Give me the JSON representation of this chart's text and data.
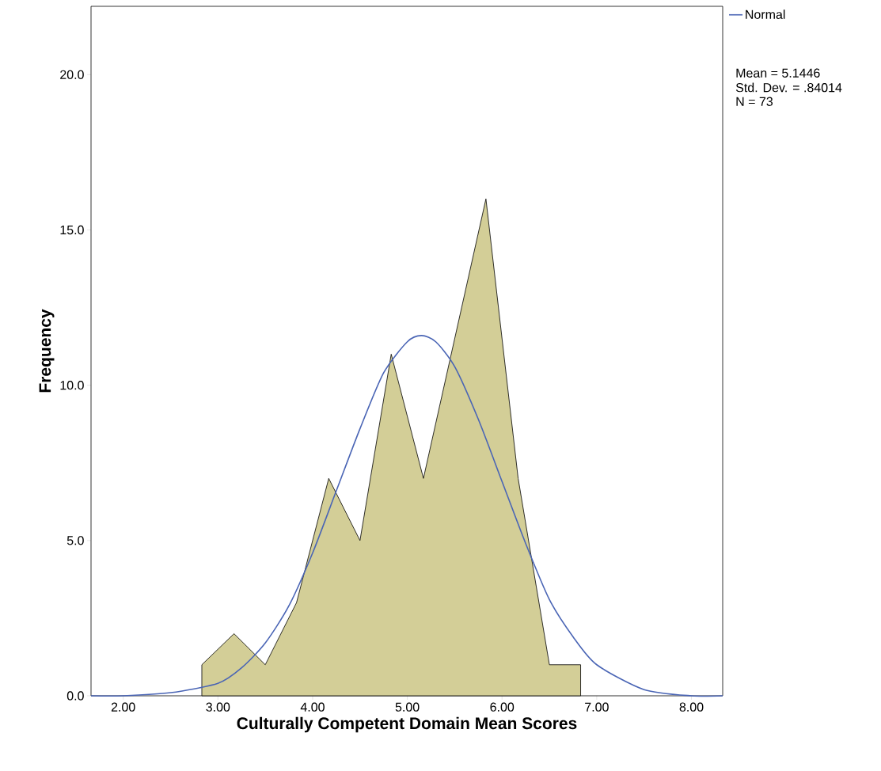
{
  "chart_data": {
    "type": "area",
    "xlabel": "Culturally Competent Domain Mean Scores",
    "ylabel": "Frequency",
    "xlim": [
      1.66,
      8.33
    ],
    "ylim": [
      0,
      22.2
    ],
    "xticks": [
      {
        "value": 2,
        "label": "2.00"
      },
      {
        "value": 3,
        "label": "3.00"
      },
      {
        "value": 4,
        "label": "4.00"
      },
      {
        "value": 5,
        "label": "5.00"
      },
      {
        "value": 6,
        "label": "6.00"
      },
      {
        "value": 7,
        "label": "7.00"
      },
      {
        "value": 8,
        "label": "8.00"
      }
    ],
    "yticks": [
      {
        "value": 0,
        "label": "0.0"
      },
      {
        "value": 5,
        "label": "5.0"
      },
      {
        "value": 10,
        "label": "10.0"
      },
      {
        "value": 15,
        "label": "15.0"
      },
      {
        "value": 20,
        "label": "20.0"
      }
    ],
    "legend": "top right",
    "annotations": [
      "Mean = 5.1446",
      "Std. Dev. = .84014",
      "N = 73"
    ],
    "series": [
      {
        "color": "#d3ce97",
        "x": [
          2.83,
          2.83,
          3.17,
          3.5,
          3.83,
          4.17,
          4.5,
          4.83,
          5.17,
          5.83,
          6.17,
          6.5,
          6.83,
          6.83
        ],
        "values": [
          0,
          1,
          2,
          1,
          3,
          7,
          5,
          11,
          7,
          16,
          7,
          1,
          1,
          0
        ]
      },
      {
        "type": "line",
        "name": "Normal",
        "color": "#4a65b5",
        "x": [
          1.66,
          2.0,
          2.5,
          3.0,
          3.25,
          3.5,
          3.75,
          4.0,
          4.25,
          4.5,
          4.75,
          5.0,
          5.15,
          5.3,
          5.5,
          5.75,
          6.0,
          6.25,
          6.5,
          6.75,
          7.0,
          7.5,
          8.0,
          8.33
        ],
        "values": [
          0.0,
          0.0,
          0.1,
          0.4,
          0.9,
          1.7,
          2.9,
          4.6,
          6.6,
          8.6,
          10.4,
          11.4,
          11.6,
          11.4,
          10.6,
          8.9,
          6.9,
          4.9,
          3.1,
          1.9,
          1.0,
          0.2,
          0.0,
          0.0
        ]
      }
    ]
  }
}
